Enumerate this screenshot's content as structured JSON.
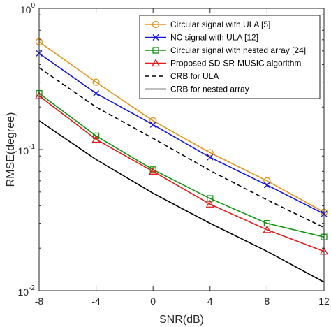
{
  "chart_data": {
    "type": "line",
    "xlabel": "SNR(dB)",
    "ylabel": "RMSE(degree)",
    "yscale": "log",
    "xlim": [
      -8,
      12
    ],
    "ylim": [
      0.01,
      1
    ],
    "x": [
      -8,
      -4,
      0,
      4,
      8,
      12
    ],
    "x_tick_labels": [
      "-8",
      "-4",
      "0",
      "4",
      "8",
      "12"
    ],
    "y_ticks": [
      {
        "value": 1,
        "base": "10",
        "exp": "0"
      },
      {
        "value": 0.1,
        "base": "10",
        "exp": "-1"
      },
      {
        "value": 0.01,
        "base": "10",
        "exp": "-2"
      }
    ],
    "grid": false,
    "legend_position": "top-right",
    "series": [
      {
        "name": "Circular signal with ULA [5]",
        "color": "#e69421",
        "marker": "circle",
        "dash": "solid",
        "values": [
          0.58,
          0.3,
          0.16,
          0.095,
          0.06,
          0.036
        ]
      },
      {
        "name": "NC signal with ULA [12]",
        "color": "#1515d8",
        "marker": "x",
        "dash": "solid",
        "values": [
          0.48,
          0.25,
          0.15,
          0.088,
          0.056,
          0.035
        ]
      },
      {
        "name": "Circular signal with nested array [24]",
        "color": "#129612",
        "marker": "square",
        "dash": "solid",
        "values": [
          0.25,
          0.125,
          0.072,
          0.045,
          0.03,
          0.024
        ]
      },
      {
        "name": "Proposed SD-SR-MUSIC algorithm",
        "color": "#e11a1a",
        "marker": "triangle",
        "dash": "solid",
        "values": [
          0.24,
          0.118,
          0.07,
          0.041,
          0.027,
          0.019
        ]
      },
      {
        "name": "CRB for ULA",
        "color": "#000000",
        "marker": "none",
        "dash": "dashed",
        "values": [
          0.38,
          0.2,
          0.12,
          0.071,
          0.044,
          0.028
        ]
      },
      {
        "name": "CRB for nested array",
        "color": "#000000",
        "marker": "none",
        "dash": "solid",
        "values": [
          0.16,
          0.085,
          0.049,
          0.03,
          0.019,
          0.0115
        ]
      }
    ]
  }
}
